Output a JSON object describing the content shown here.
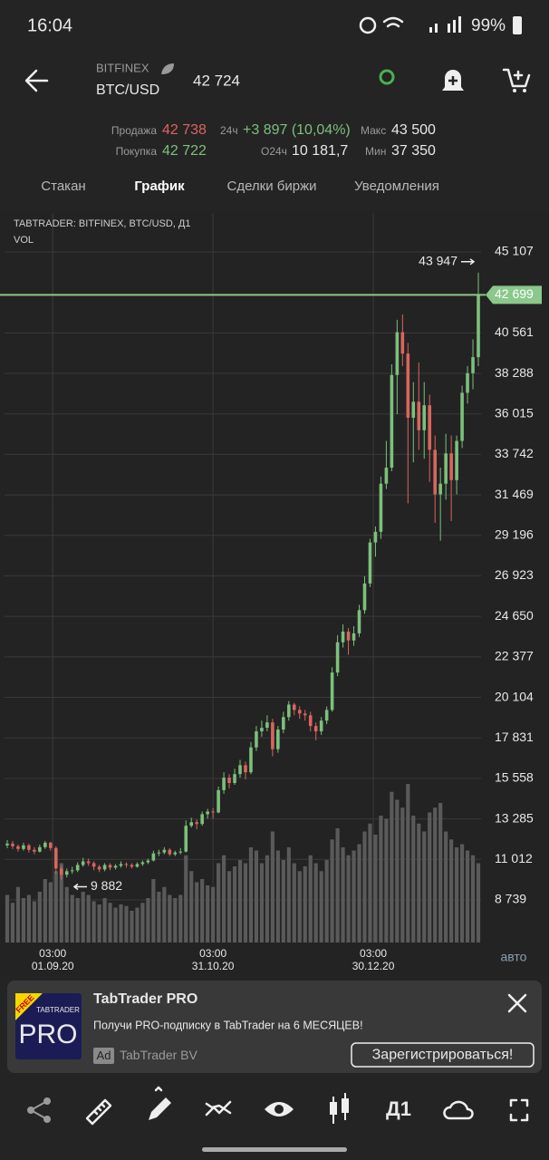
{
  "status_bar": {
    "time": "16:04",
    "battery": "99%"
  },
  "header": {
    "exchange": "BITFINEX",
    "pair": "BTC/USD",
    "price": "42 724"
  },
  "stats": {
    "sell_label": "Продажа",
    "sell": "42 738",
    "change_label": "24ч",
    "change": "+3 897 (10,04%)",
    "max_label": "Макс",
    "max": "43 500",
    "buy_label": "Покупка",
    "buy": "42 722",
    "volume_label": "О24ч",
    "volume": "10 181,7",
    "min_label": "Мин",
    "min": "37 350"
  },
  "tabs": [
    "Стакан",
    "График",
    "Сделки биржи",
    "Уведомления"
  ],
  "active_tab": 1,
  "chart": {
    "type": "candlestick",
    "title": "TABTRADER: BITFINEX, BTC/USD, Д1",
    "indicator": "VOL",
    "scale_mode": "авто",
    "up_color": "#7cc07c",
    "down_color": "#d9665e",
    "volume_color": "#5a5a5a",
    "grid": true,
    "xlim": [
      -0.5,
      87.5
    ],
    "xticks": [
      {
        "value": 8.4,
        "label": [
          "03:00",
          "01.09.20"
        ]
      },
      {
        "value": 38,
        "label": [
          "03:00",
          "31.10.20"
        ]
      },
      {
        "value": 67.6,
        "label": [
          "03:00",
          "30.12.20"
        ]
      }
    ],
    "ylim": [
      6348,
      47294
    ],
    "yticks": [
      {
        "value": 45107,
        "label": "45 107"
      },
      {
        "value": 40561,
        "label": "40 561"
      },
      {
        "value": 38288,
        "label": "38 288"
      },
      {
        "value": 36015,
        "label": "36 015"
      },
      {
        "value": 33742,
        "label": "33 742"
      },
      {
        "value": 31469,
        "label": "31 469"
      },
      {
        "value": 29196,
        "label": "29 196"
      },
      {
        "value": 26923,
        "label": "26 923"
      },
      {
        "value": 24650,
        "label": "24 650"
      },
      {
        "value": 22377,
        "label": "22 377"
      },
      {
        "value": 20104,
        "label": "20 104"
      },
      {
        "value": 17831,
        "label": "17 831"
      },
      {
        "value": 15558,
        "label": "15 558"
      },
      {
        "value": 13285,
        "label": "13 285"
      },
      {
        "value": 11012,
        "label": "11 012"
      },
      {
        "value": 8739,
        "label": "8 739"
      }
    ],
    "last_price": {
      "value": 42699,
      "label": "42 699"
    },
    "high_mark": {
      "value": 43947,
      "label": "43 947"
    },
    "low_mark": {
      "value": 9882,
      "label": "9 882"
    },
    "candles": [
      [
        11800,
        12100,
        11650,
        11900
      ],
      [
        11900,
        12050,
        11600,
        11750
      ],
      [
        11750,
        11850,
        11450,
        11600
      ],
      [
        11600,
        11950,
        11500,
        11800
      ],
      [
        11800,
        11900,
        11400,
        11550
      ],
      [
        11550,
        11700,
        11300,
        11450
      ],
      [
        11450,
        11850,
        11400,
        11700
      ],
      [
        11700,
        12050,
        11600,
        11950
      ],
      [
        11950,
        12000,
        11500,
        11650
      ],
      [
        11650,
        11750,
        10200,
        10500
      ],
      [
        10500,
        10650,
        9882,
        10150
      ],
      [
        10150,
        10500,
        10000,
        10350
      ],
      [
        10350,
        10600,
        10200,
        10400
      ],
      [
        10400,
        10850,
        10300,
        10700
      ],
      [
        10700,
        11100,
        10600,
        10900
      ],
      [
        10900,
        11050,
        10650,
        10800
      ],
      [
        10800,
        10900,
        10400,
        10600
      ],
      [
        10600,
        10700,
        10300,
        10450
      ],
      [
        10450,
        10800,
        10350,
        10700
      ],
      [
        10700,
        10800,
        10400,
        10550
      ],
      [
        10550,
        10750,
        10450,
        10650
      ],
      [
        10650,
        10900,
        10550,
        10750
      ],
      [
        10750,
        10850,
        10550,
        10700
      ],
      [
        10700,
        10800,
        10500,
        10600
      ],
      [
        10600,
        10850,
        10550,
        10750
      ],
      [
        10750,
        10950,
        10650,
        10850
      ],
      [
        10850,
        11050,
        10750,
        10950
      ],
      [
        10950,
        11500,
        10900,
        11350
      ],
      [
        11350,
        11550,
        11200,
        11400
      ],
      [
        11400,
        11700,
        11300,
        11550
      ],
      [
        11550,
        11650,
        11200,
        11300
      ],
      [
        11300,
        11500,
        11200,
        11400
      ],
      [
        11400,
        11650,
        11300,
        11450
      ],
      [
        11450,
        13200,
        11400,
        12900
      ],
      [
        12900,
        13350,
        12800,
        13100
      ],
      [
        13100,
        13250,
        12700,
        13000
      ],
      [
        13000,
        13700,
        12900,
        13550
      ],
      [
        13550,
        13850,
        13300,
        13700
      ],
      [
        13700,
        13900,
        13300,
        13650
      ],
      [
        13650,
        15100,
        13600,
        14900
      ],
      [
        14900,
        15900,
        14700,
        15600
      ],
      [
        15600,
        15800,
        15000,
        15300
      ],
      [
        15300,
        16100,
        15200,
        15800
      ],
      [
        15800,
        16600,
        15600,
        16300
      ],
      [
        16300,
        16500,
        15500,
        15900
      ],
      [
        15900,
        17600,
        15800,
        17300
      ],
      [
        17300,
        18500,
        17100,
        18200
      ],
      [
        18200,
        18800,
        17900,
        18400
      ],
      [
        18400,
        19100,
        18200,
        18700
      ],
      [
        18700,
        18900,
        16800,
        17200
      ],
      [
        17200,
        18500,
        17000,
        18300
      ],
      [
        18300,
        19300,
        18100,
        19000
      ],
      [
        19000,
        19900,
        18800,
        19700
      ],
      [
        19700,
        19800,
        19100,
        19400
      ],
      [
        19400,
        19600,
        18900,
        19200
      ],
      [
        19200,
        19400,
        18800,
        19100
      ],
      [
        19100,
        19300,
        18200,
        18500
      ],
      [
        18500,
        18700,
        17700,
        18200
      ],
      [
        18200,
        19000,
        18000,
        18800
      ],
      [
        18800,
        19600,
        18600,
        19400
      ],
      [
        19400,
        21800,
        19300,
        21500
      ],
      [
        21500,
        23600,
        21300,
        23200
      ],
      [
        23200,
        24200,
        22900,
        23800
      ],
      [
        23800,
        24000,
        22500,
        23300
      ],
      [
        23300,
        24100,
        23000,
        23700
      ],
      [
        23700,
        25300,
        23500,
        25000
      ],
      [
        25000,
        26900,
        24800,
        26500
      ],
      [
        26500,
        29000,
        26300,
        28800
      ],
      [
        28800,
        29700,
        28000,
        29400
      ],
      [
        29400,
        32500,
        29000,
        32100
      ],
      [
        32100,
        34500,
        31800,
        33000
      ],
      [
        33000,
        38800,
        32800,
        38200
      ],
      [
        38200,
        41300,
        36000,
        40600
      ],
      [
        40600,
        41600,
        38700,
        39400
      ],
      [
        39400,
        40000,
        31000,
        35800
      ],
      [
        35800,
        37800,
        33300,
        36700
      ],
      [
        36700,
        38900,
        34000,
        35100
      ],
      [
        35100,
        37800,
        33500,
        36500
      ],
      [
        36500,
        37100,
        32200,
        34000
      ],
      [
        34000,
        34800,
        29900,
        31500
      ],
      [
        31500,
        33000,
        28900,
        32100
      ],
      [
        32100,
        34900,
        31200,
        33800
      ],
      [
        33800,
        34800,
        30000,
        32300
      ],
      [
        32300,
        34800,
        31500,
        34500
      ],
      [
        34500,
        37600,
        34100,
        37200
      ],
      [
        37200,
        38700,
        36600,
        38300
      ],
      [
        38300,
        40200,
        37400,
        39200
      ],
      [
        39200,
        43947,
        38700,
        42699
      ]
    ],
    "volumes": [
      30,
      25,
      35,
      28,
      30,
      26,
      32,
      40,
      38,
      45,
      50,
      35,
      30,
      28,
      32,
      30,
      26,
      24,
      28,
      25,
      22,
      24,
      23,
      20,
      22,
      25,
      28,
      40,
      32,
      35,
      30,
      28,
      30,
      55,
      45,
      38,
      40,
      36,
      35,
      50,
      55,
      45,
      48,
      52,
      50,
      60,
      58,
      50,
      55,
      70,
      58,
      52,
      60,
      50,
      45,
      48,
      55,
      50,
      45,
      52,
      65,
      72,
      60,
      55,
      58,
      62,
      70,
      75,
      68,
      80,
      78,
      95,
      90,
      85,
      100,
      80,
      75,
      70,
      82,
      85,
      88,
      70,
      65,
      60,
      62,
      58,
      55,
      50
    ]
  },
  "ad": {
    "badge": "FREE",
    "logo_top": "TABTRADER",
    "logo": "PRO",
    "title": "TabTrader PRO",
    "text": "Получи PRO-подписку в TabTrader на 6 МЕСЯЦЕВ!",
    "ad_tag": "Ad",
    "advertiser": "TabTrader BV",
    "button": "Зарегистрироваться!"
  },
  "toolbar": {
    "timeframe": "Д1"
  }
}
